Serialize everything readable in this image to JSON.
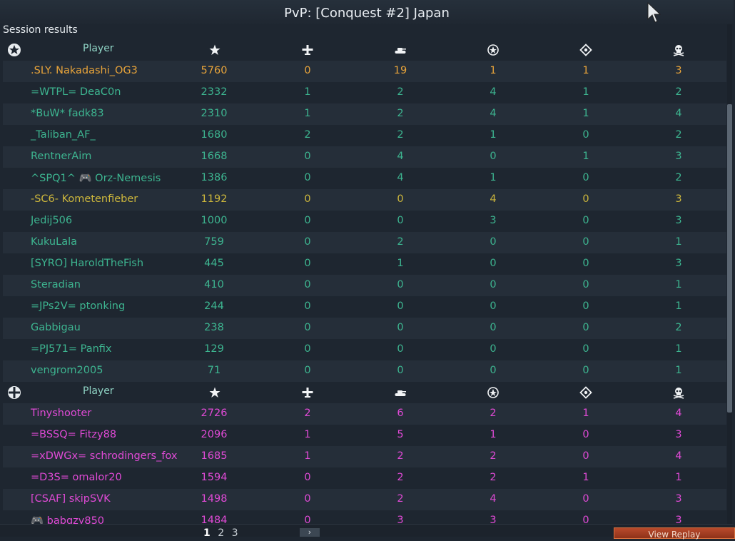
{
  "window": {
    "title": "PvP: [Conquest #2] Japan"
  },
  "session_label": "Session results",
  "colors": {
    "own_team": "#3db590",
    "squad": "#e8a43a",
    "yellow": "#cdb73c",
    "enemy": "#e04ad6"
  },
  "teams": [
    {
      "icon": "allied-team-star-icon",
      "header": {
        "player": "Player",
        "icons": [
          "score-star-icon",
          "air-kill-plane-icon",
          "ground-kill-tank-icon",
          "assist-icon",
          "capture-icon",
          "death-skull-icon"
        ]
      },
      "rows": [
        {
          "name": ".SLY. Nakadashi_OG3",
          "score": "5760",
          "air": "0",
          "ground": "19",
          "assists": "1",
          "captures": "1",
          "deaths": "3",
          "color": "#e8a43a"
        },
        {
          "name": "=WTPL= DeaC0n",
          "score": "2332",
          "air": "1",
          "ground": "2",
          "assists": "4",
          "captures": "1",
          "deaths": "2",
          "color": "#3db590"
        },
        {
          "name": "*BuW* fadk83",
          "score": "2310",
          "air": "1",
          "ground": "2",
          "assists": "4",
          "captures": "1",
          "deaths": "4",
          "color": "#3db590"
        },
        {
          "name": "_Taliban_AF_",
          "score": "1680",
          "air": "2",
          "ground": "2",
          "assists": "1",
          "captures": "0",
          "deaths": "2",
          "color": "#3db590"
        },
        {
          "name": "RentnerAim",
          "score": "1668",
          "air": "0",
          "ground": "4",
          "assists": "0",
          "captures": "1",
          "deaths": "3",
          "color": "#3db590"
        },
        {
          "name": "^SPQ1^ 🎮 Orz-Nemesis",
          "score": "1386",
          "air": "0",
          "ground": "4",
          "assists": "1",
          "captures": "0",
          "deaths": "2",
          "color": "#3db590"
        },
        {
          "name": "-SC6- Kometenfieber",
          "score": "1192",
          "air": "0",
          "ground": "0",
          "assists": "4",
          "captures": "0",
          "deaths": "3",
          "color": "#cdb73c"
        },
        {
          "name": "Jedij506",
          "score": "1000",
          "air": "0",
          "ground": "0",
          "assists": "3",
          "captures": "0",
          "deaths": "3",
          "color": "#3db590"
        },
        {
          "name": "KukuLala",
          "score": "759",
          "air": "0",
          "ground": "2",
          "assists": "0",
          "captures": "0",
          "deaths": "1",
          "color": "#3db590"
        },
        {
          "name": "[SYRO] HaroldTheFish",
          "score": "445",
          "air": "0",
          "ground": "1",
          "assists": "0",
          "captures": "0",
          "deaths": "3",
          "color": "#3db590"
        },
        {
          "name": "Steradian",
          "score": "410",
          "air": "0",
          "ground": "0",
          "assists": "0",
          "captures": "0",
          "deaths": "1",
          "color": "#3db590"
        },
        {
          "name": "=JPs2V= ptonking",
          "score": "244",
          "air": "0",
          "ground": "0",
          "assists": "0",
          "captures": "0",
          "deaths": "1",
          "color": "#3db590"
        },
        {
          "name": "Gabbigau",
          "score": "238",
          "air": "0",
          "ground": "0",
          "assists": "0",
          "captures": "0",
          "deaths": "2",
          "color": "#3db590"
        },
        {
          "name": "=PJ571= Panfix",
          "score": "129",
          "air": "0",
          "ground": "0",
          "assists": "0",
          "captures": "0",
          "deaths": "1",
          "color": "#3db590"
        },
        {
          "name": "vengrom2005",
          "score": "71",
          "air": "0",
          "ground": "0",
          "assists": "0",
          "captures": "0",
          "deaths": "1",
          "color": "#3db590"
        }
      ]
    },
    {
      "icon": "enemy-team-cross-icon",
      "header": {
        "player": "Player",
        "icons": [
          "score-star-icon",
          "air-kill-plane-icon",
          "ground-kill-tank-icon",
          "assist-icon",
          "capture-icon",
          "death-skull-icon"
        ]
      },
      "rows": [
        {
          "name": "Tinyshooter",
          "score": "2726",
          "air": "2",
          "ground": "6",
          "assists": "2",
          "captures": "1",
          "deaths": "4",
          "color": "#e04ad6"
        },
        {
          "name": "=BSSQ= Fitzy88",
          "score": "2096",
          "air": "1",
          "ground": "5",
          "assists": "1",
          "captures": "0",
          "deaths": "3",
          "color": "#e04ad6"
        },
        {
          "name": "=xDWGx= schrodingers_fox",
          "score": "1685",
          "air": "1",
          "ground": "2",
          "assists": "2",
          "captures": "0",
          "deaths": "4",
          "color": "#e04ad6"
        },
        {
          "name": "=D3S= omalor20",
          "score": "1594",
          "air": "0",
          "ground": "2",
          "assists": "2",
          "captures": "1",
          "deaths": "1",
          "color": "#e04ad6"
        },
        {
          "name": "[CSAF] skipSVK",
          "score": "1498",
          "air": "0",
          "ground": "2",
          "assists": "4",
          "captures": "0",
          "deaths": "3",
          "color": "#e04ad6"
        },
        {
          "name": "🎮 babgzy850",
          "score": "1484",
          "air": "0",
          "ground": "3",
          "assists": "3",
          "captures": "0",
          "deaths": "3",
          "color": "#e04ad6"
        }
      ]
    }
  ],
  "footer": {
    "pages": [
      "1",
      "2",
      "3"
    ],
    "current_page": "1",
    "next_label": "›",
    "replay_label": "View Replay"
  }
}
